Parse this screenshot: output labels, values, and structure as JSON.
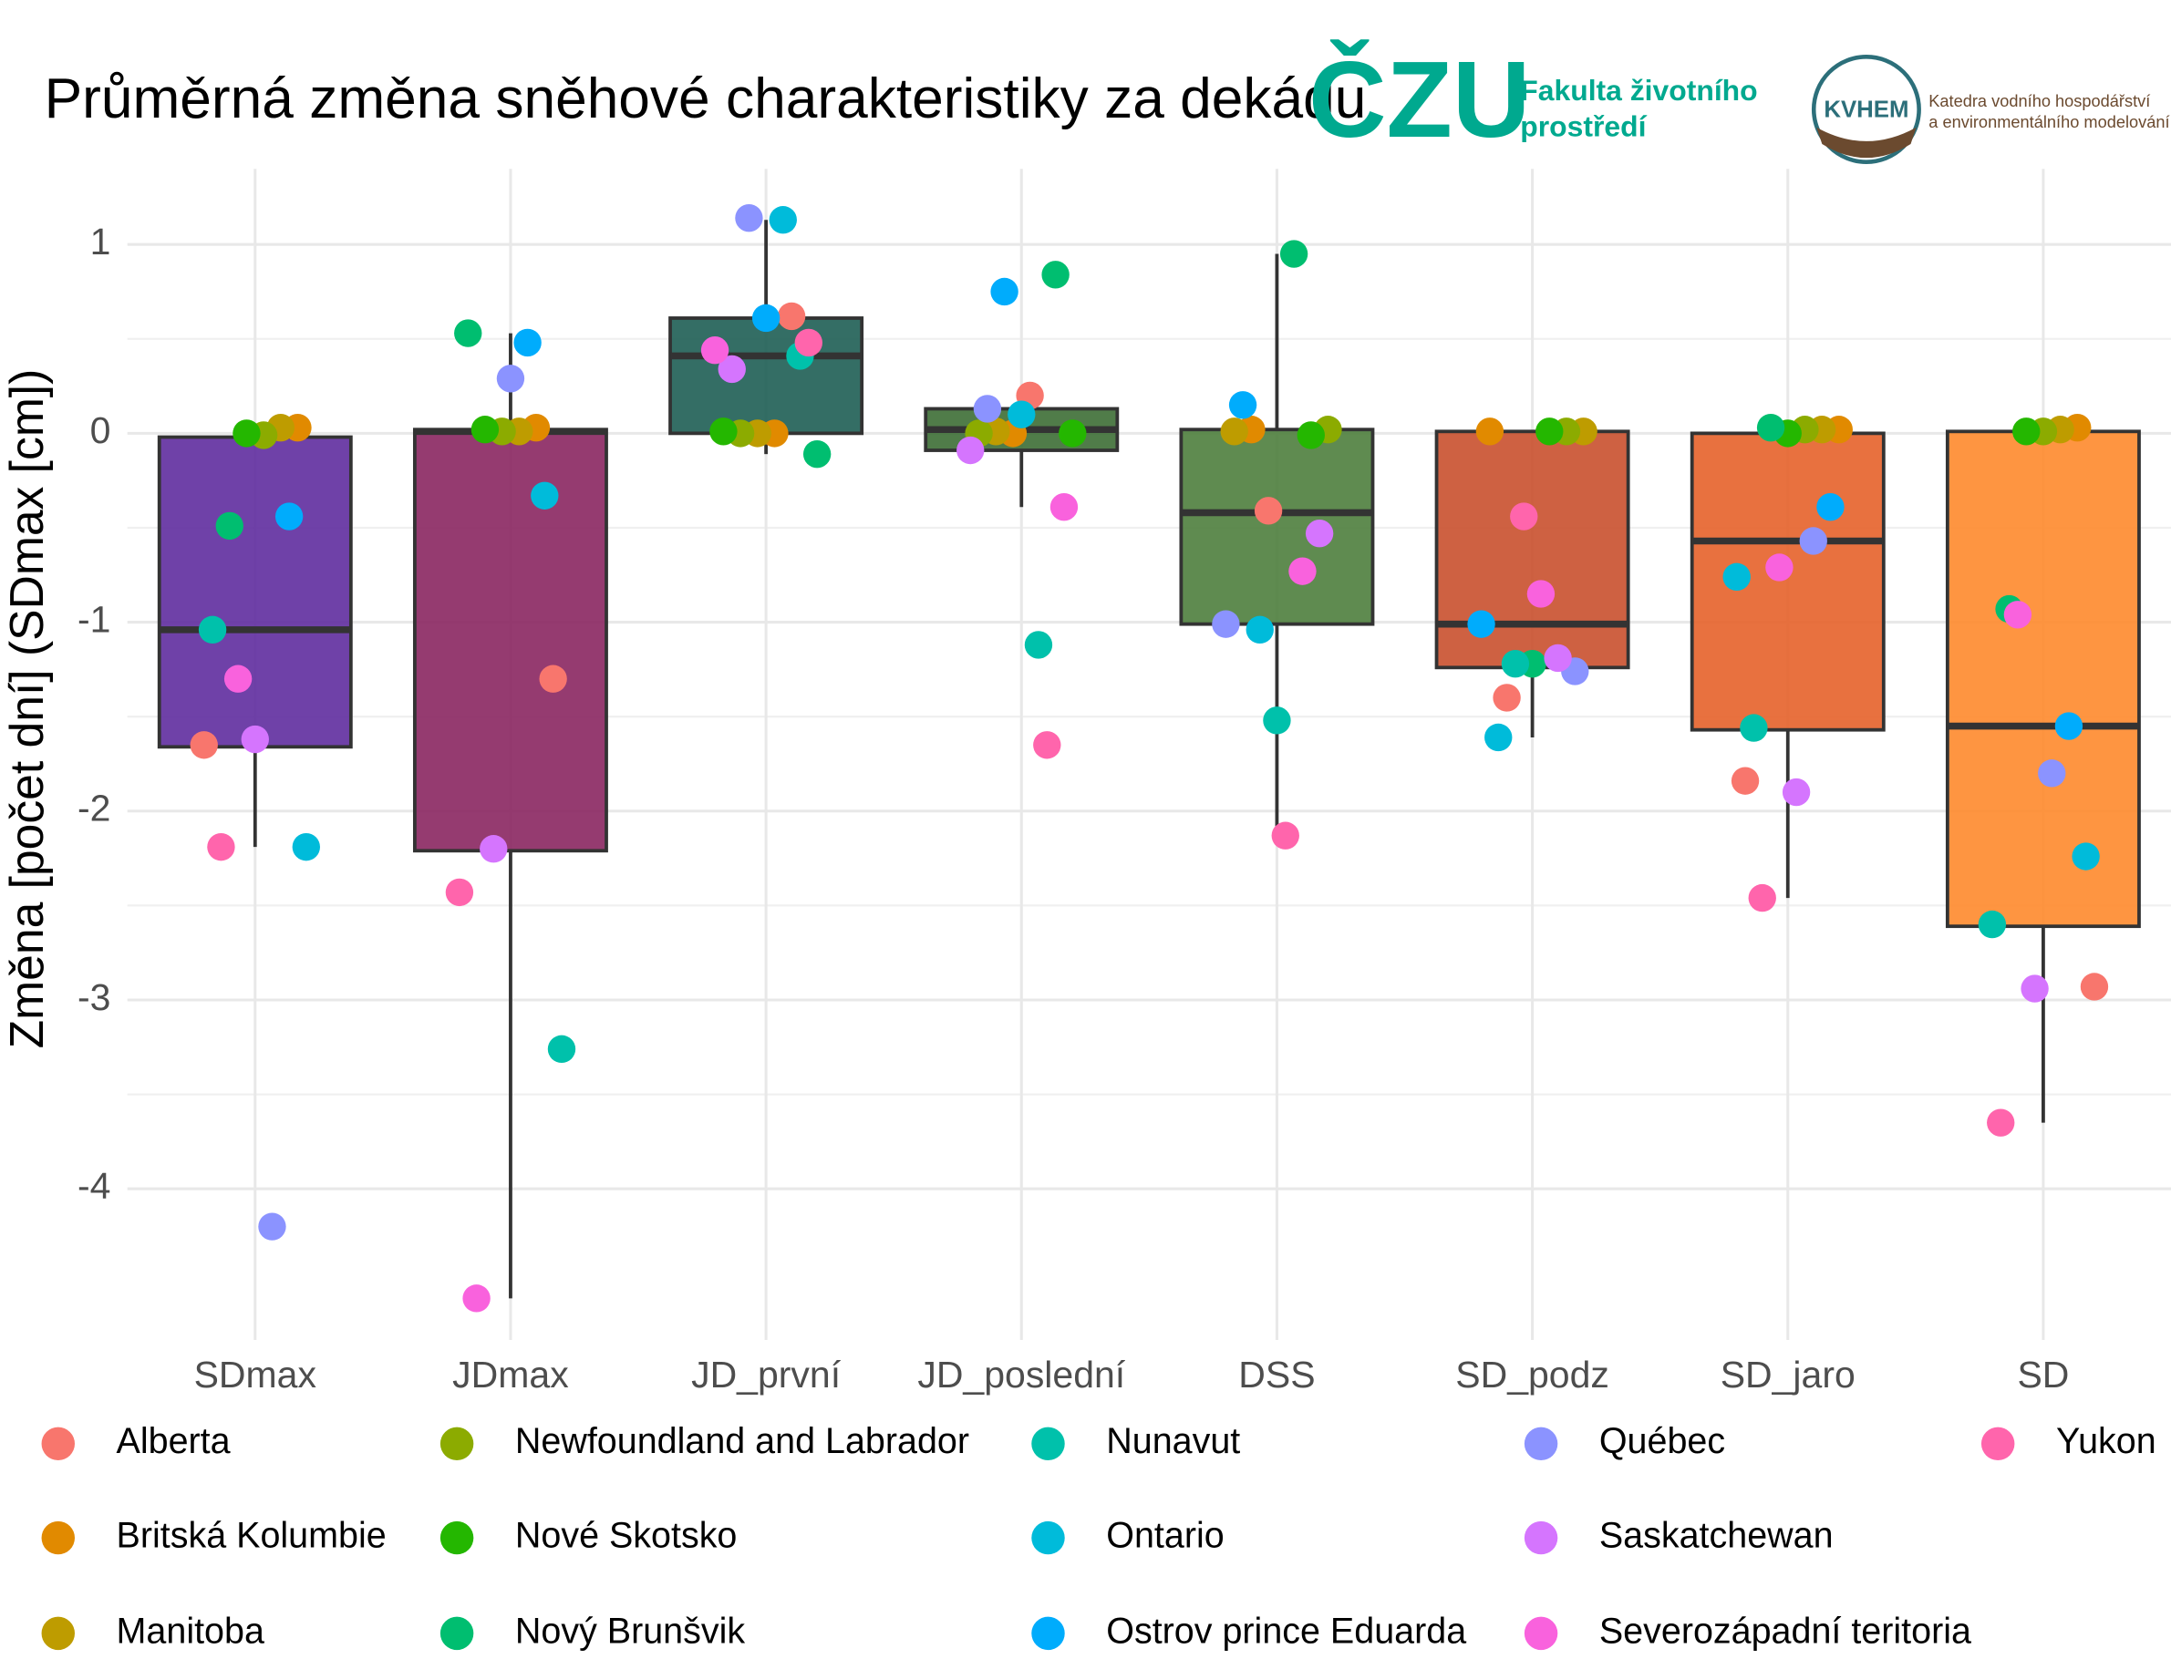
{
  "header": {
    "czu": "ČZU",
    "faculty_line1": "Fakulta životního",
    "faculty_line2": "prostředí",
    "kvhem": "KVHEM",
    "dept_line1": "Katedra vodního hospodářství",
    "dept_line2": "a environmentálního modelování"
  },
  "chart_data": {
    "type": "box",
    "title": "Průměrná změna sněhové charakteristiky za dekádu",
    "y_label": "Změna [počet dní] (SDmax [cm])",
    "categories": [
      "SDmax",
      "JDmax",
      "JD_první",
      "JD_poslední",
      "DSS",
      "SD_podz",
      "SD_jaro",
      "SD"
    ],
    "ylim": [
      -4.8,
      1.4
    ],
    "yticks": [
      -4,
      -3,
      -2,
      -1,
      0,
      1
    ],
    "grid": true,
    "boxes": [
      {
        "low": -2.19,
        "q1": -1.66,
        "median": -1.04,
        "q3": -0.02,
        "high": 0.03,
        "color": "#5f2c9e"
      },
      {
        "low": -4.58,
        "q1": -2.21,
        "median": 0.01,
        "q3": 0.02,
        "high": 0.53,
        "color": "#8a2660"
      },
      {
        "low": -0.11,
        "q1": 0.0,
        "median": 0.41,
        "q3": 0.61,
        "high": 1.13,
        "color": "#1e5e54"
      },
      {
        "low": -0.39,
        "q1": -0.09,
        "median": 0.02,
        "q3": 0.13,
        "high": 0.2,
        "color": "#3d6e35"
      },
      {
        "low": -2.13,
        "q1": -1.01,
        "median": -0.42,
        "q3": 0.02,
        "high": 0.95,
        "color": "#4e7e3d"
      },
      {
        "low": -1.61,
        "q1": -1.24,
        "median": -1.01,
        "q3": 0.01,
        "high": 0.01,
        "color": "#c9502d"
      },
      {
        "low": -2.46,
        "q1": -1.57,
        "median": -0.57,
        "q3": 0.0,
        "high": 0.03,
        "color": "#e5622a"
      },
      {
        "low": -3.65,
        "q1": -2.61,
        "median": -1.55,
        "q3": 0.01,
        "high": 0.03,
        "color": "#fe8a2c"
      }
    ],
    "series": [
      {
        "name": "Alberta",
        "color": "#F8766D",
        "values": [
          -1.65,
          -1.3,
          0.62,
          0.2,
          -0.41,
          -1.4,
          -1.84,
          -2.93
        ]
      },
      {
        "name": "Britská Kolumbie",
        "color": "#E18A00",
        "values": [
          0.03,
          0.03,
          0.0,
          0.0,
          0.02,
          0.01,
          0.02,
          0.03
        ]
      },
      {
        "name": "Manitoba",
        "color": "#BE9C00",
        "values": [
          0.03,
          0.01,
          0.0,
          0.01,
          0.01,
          0.01,
          0.02,
          0.02
        ]
      },
      {
        "name": "Newfoundland and Labrador",
        "color": "#8CAB00",
        "values": [
          -0.01,
          0.01,
          0.0,
          0.0,
          0.02,
          0.01,
          0.02,
          0.01
        ]
      },
      {
        "name": "Nové Skotsko",
        "color": "#24B700",
        "values": [
          0.0,
          0.02,
          0.01,
          0.0,
          -0.01,
          0.01,
          0.0,
          0.01
        ]
      },
      {
        "name": "Nový Brunšvik",
        "color": "#00BE70",
        "values": [
          -0.49,
          0.53,
          -0.11,
          0.84,
          0.95,
          -1.22,
          0.03,
          -0.93
        ]
      },
      {
        "name": "Nunavut",
        "color": "#00C1AB",
        "values": [
          -1.04,
          -3.26,
          0.41,
          -1.12,
          -1.52,
          -1.22,
          -1.56,
          -2.6
        ]
      },
      {
        "name": "Ontario",
        "color": "#00BBDA",
        "values": [
          -2.19,
          -0.33,
          1.13,
          0.1,
          -1.04,
          -1.61,
          -0.76,
          -2.24
        ]
      },
      {
        "name": "Ostrov prince Eduarda",
        "color": "#00ACFC",
        "values": [
          -0.44,
          0.48,
          0.61,
          0.75,
          0.15,
          -1.01,
          -0.39,
          -1.55
        ]
      },
      {
        "name": "Québec",
        "color": "#8B93FF",
        "values": [
          -4.2,
          0.29,
          1.14,
          0.13,
          -1.01,
          -1.26,
          -0.57,
          -1.8
        ]
      },
      {
        "name": "Saskatchewan",
        "color": "#D575FE",
        "values": [
          -1.62,
          -2.2,
          0.34,
          -0.09,
          -0.53,
          -1.19,
          -1.9,
          -2.94
        ]
      },
      {
        "name": "Severozápadní teritoria",
        "color": "#F962DD",
        "values": [
          -1.3,
          -4.58,
          0.44,
          -0.39,
          -0.73,
          -0.85,
          -0.71,
          -0.96
        ]
      },
      {
        "name": "Yukon",
        "color": "#FF65AC",
        "values": [
          -2.19,
          -2.43,
          0.48,
          -1.65,
          -2.13,
          -0.44,
          -2.46,
          -3.65
        ]
      }
    ]
  }
}
